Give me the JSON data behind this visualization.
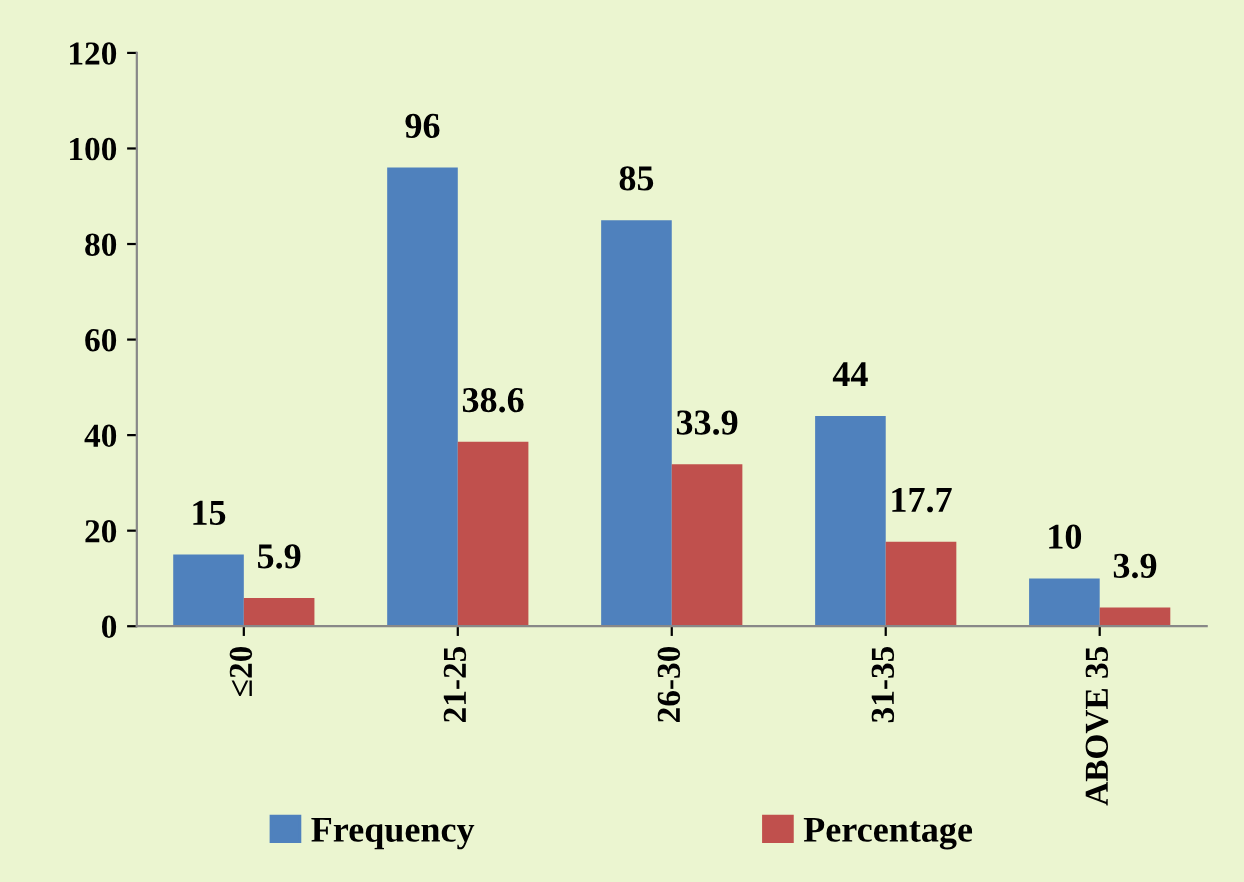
{
  "chart_data": {
    "type": "bar",
    "categories": [
      "≤20",
      "21-25",
      "26-30",
      "31-35",
      "ABOVE 35"
    ],
    "series": [
      {
        "name": "Frequency",
        "color": "#4f81bd",
        "values": [
          15,
          96,
          85,
          44,
          10
        ]
      },
      {
        "name": "Percentage",
        "color": "#c0504d",
        "values": [
          5.9,
          38.6,
          33.9,
          17.7,
          3.9
        ]
      }
    ],
    "ylim": [
      0,
      120
    ],
    "yticks": [
      0,
      20,
      40,
      60,
      80,
      100,
      120
    ],
    "data_labels": true,
    "grid": false,
    "legend": "bottom"
  }
}
